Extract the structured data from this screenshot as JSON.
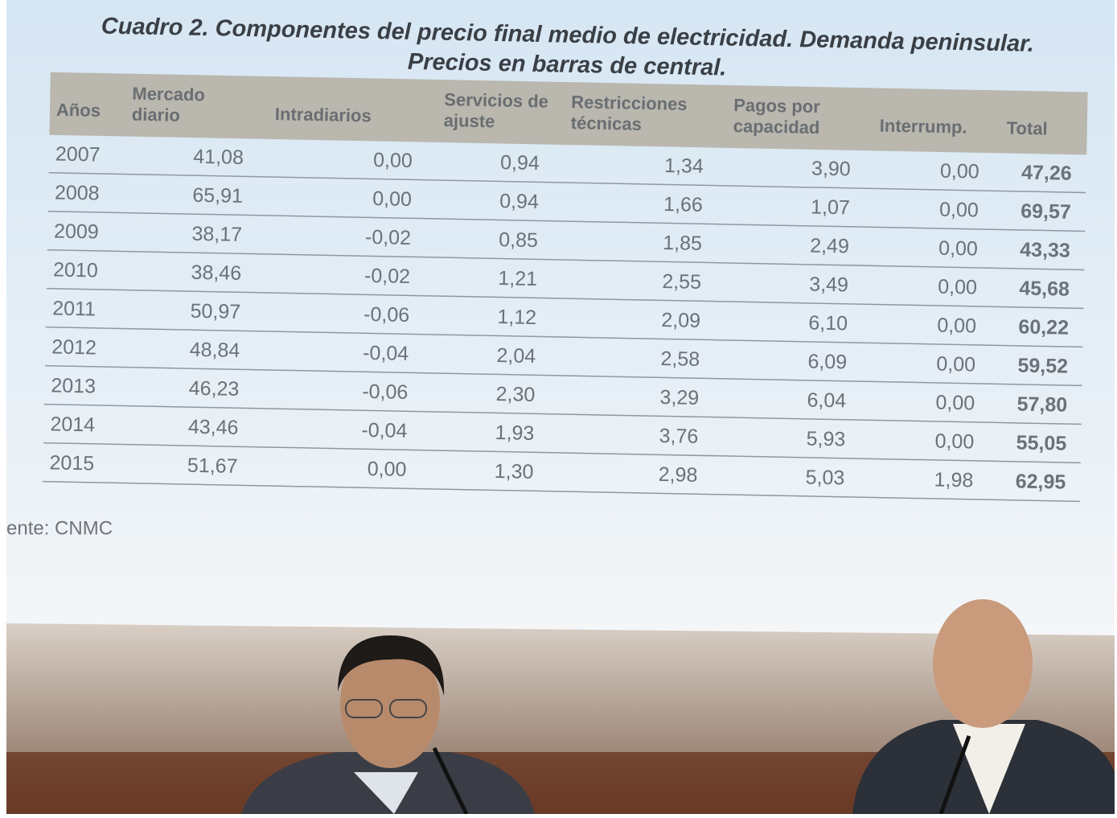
{
  "slide": {
    "title_line1": "Cuadro 2. Componentes del precio final medio de electricidad. Demanda peninsular.",
    "title_line2": "Precios en barras de central.",
    "table": {
      "header": [
        "Años",
        "Mercado diario",
        "Intradiarios",
        "Servicios de ajuste",
        "Restricciones técnicas",
        "Pagos por capacidad",
        "Interrump.",
        "Total"
      ],
      "rows": [
        [
          "2007",
          "41,08",
          "0,00",
          "0,94",
          "1,34",
          "3,90",
          "0,00",
          "47,26"
        ],
        [
          "2008",
          "65,91",
          "0,00",
          "0,94",
          "1,66",
          "1,07",
          "0,00",
          "69,57"
        ],
        [
          "2009",
          "38,17",
          "-0,02",
          "0,85",
          "1,85",
          "2,49",
          "0,00",
          "43,33"
        ],
        [
          "2010",
          "38,46",
          "-0,02",
          "1,21",
          "2,55",
          "3,49",
          "0,00",
          "45,68"
        ],
        [
          "2011",
          "50,97",
          "-0,06",
          "1,12",
          "2,09",
          "6,10",
          "0,00",
          "60,22"
        ],
        [
          "2012",
          "48,84",
          "-0,04",
          "2,04",
          "2,58",
          "6,09",
          "0,00",
          "59,52"
        ],
        [
          "2013",
          "46,23",
          "-0,06",
          "2,30",
          "3,29",
          "6,04",
          "0,00",
          "57,80"
        ],
        [
          "2014",
          "43,46",
          "-0,04",
          "1,93",
          "3,76",
          "5,93",
          "0,00",
          "55,05"
        ],
        [
          "2015",
          "51,67",
          "0,00",
          "1,30",
          "2,98",
          "5,03",
          "1,98",
          "62,95"
        ]
      ]
    },
    "source": "ente: CNMC"
  }
}
